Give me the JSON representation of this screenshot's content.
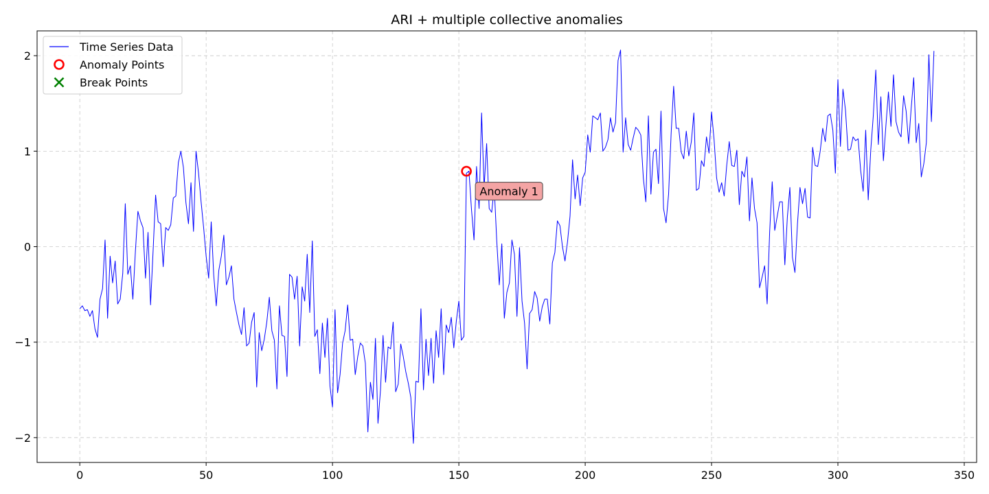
{
  "chart_data": {
    "type": "line",
    "title": "ARI + multiple collective anomalies",
    "xlabel": "",
    "ylabel": "",
    "xlim": [
      -16.9,
      354.9
    ],
    "ylim": [
      -2.26,
      2.26
    ],
    "xticks": [
      0,
      50,
      100,
      150,
      200,
      250,
      300,
      350
    ],
    "yticks": [
      -2,
      -1,
      0,
      1,
      2
    ],
    "ytick_labels": [
      "−2",
      "−1",
      "0",
      "1",
      "2"
    ],
    "grid": true,
    "legend_position": "upper-left",
    "legend": [
      {
        "label": "Time Series Data",
        "marker": "line",
        "color": "#0000ff"
      },
      {
        "label": "Anomaly Points",
        "marker": "circle",
        "color": "#ff0000"
      },
      {
        "label": "Break Points",
        "marker": "x",
        "color": "#008000"
      }
    ],
    "series": [
      {
        "name": "Time Series Data",
        "color": "#0000ff",
        "y": [
          -0.65,
          -0.62,
          -0.67,
          -0.66,
          -0.73,
          -0.67,
          -0.86,
          -0.95,
          -0.55,
          -0.44,
          0.07,
          -0.75,
          -0.1,
          -0.38,
          -0.15,
          -0.6,
          -0.55,
          -0.28,
          0.45,
          -0.29,
          -0.2,
          -0.55,
          -0.05,
          0.37,
          0.27,
          0.2,
          -0.33,
          0.15,
          -0.61,
          -0.05,
          0.54,
          0.26,
          0.24,
          -0.21,
          0.2,
          0.17,
          0.23,
          0.51,
          0.53,
          0.88,
          1.0,
          0.83,
          0.46,
          0.24,
          0.67,
          0.16,
          1.0,
          0.77,
          0.47,
          0.2,
          -0.1,
          -0.33,
          0.26,
          -0.3,
          -0.62,
          -0.25,
          -0.1,
          0.12,
          -0.4,
          -0.32,
          -0.2,
          -0.55,
          -0.69,
          -0.82,
          -0.92,
          -0.64,
          -1.04,
          -1.01,
          -0.79,
          -0.69,
          -1.47,
          -0.9,
          -1.09,
          -0.97,
          -0.79,
          -0.53,
          -0.88,
          -0.98,
          -1.49,
          -0.62,
          -0.93,
          -0.94,
          -1.36,
          -0.29,
          -0.32,
          -0.55,
          -0.31,
          -1.04,
          -0.42,
          -0.57,
          -0.08,
          -0.69,
          0.06,
          -0.94,
          -0.87,
          -1.33,
          -0.8,
          -1.16,
          -0.75,
          -1.46,
          -1.68,
          -0.66,
          -1.53,
          -1.34,
          -1.01,
          -0.88,
          -0.61,
          -0.98,
          -0.97,
          -1.34,
          -1.15,
          -1.01,
          -1.04,
          -1.22,
          -1.94,
          -1.42,
          -1.6,
          -0.96,
          -1.85,
          -1.5,
          -0.93,
          -1.42,
          -1.05,
          -1.07,
          -0.79,
          -1.52,
          -1.44,
          -1.02,
          -1.15,
          -1.31,
          -1.43,
          -1.58,
          -2.06,
          -1.41,
          -1.42,
          -0.65,
          -1.5,
          -0.97,
          -1.35,
          -0.96,
          -1.43,
          -0.88,
          -1.16,
          -0.65,
          -1.34,
          -0.82,
          -0.9,
          -0.74,
          -1.06,
          -0.78,
          -0.57,
          -0.98,
          -0.94,
          0.77,
          0.79,
          0.39,
          0.07,
          0.84,
          0.4,
          1.4,
          0.62,
          1.08,
          0.4,
          0.36,
          0.62,
          0.06,
          -0.4,
          0.03,
          -0.75,
          -0.48,
          -0.38,
          0.07,
          -0.08,
          -0.73,
          -0.01,
          -0.57,
          -0.8,
          -1.28,
          -0.7,
          -0.66,
          -0.47,
          -0.54,
          -0.78,
          -0.63,
          -0.55,
          -0.55,
          -0.81,
          -0.17,
          -0.06,
          0.27,
          0.22,
          0.0,
          -0.15,
          0.05,
          0.32,
          0.91,
          0.5,
          0.75,
          0.43,
          0.72,
          0.78,
          1.17,
          0.99,
          1.37,
          1.35,
          1.33,
          1.4,
          1.0,
          1.04,
          1.12,
          1.35,
          1.2,
          1.3,
          1.95,
          2.06,
          0.99,
          1.35,
          1.07,
          1.01,
          1.14,
          1.25,
          1.22,
          1.17,
          0.72,
          0.47,
          1.37,
          0.55,
          0.99,
          1.02,
          0.66,
          1.42,
          0.4,
          0.25,
          0.55,
          1.18,
          1.68,
          1.24,
          1.24,
          0.99,
          0.92,
          1.21,
          0.95,
          1.1,
          1.4,
          0.59,
          0.61,
          0.9,
          0.84,
          1.15,
          0.98,
          1.41,
          1.12,
          0.72,
          0.57,
          0.67,
          0.53,
          0.85,
          1.1,
          0.85,
          0.84,
          1.01,
          0.44,
          0.79,
          0.73,
          0.94,
          0.27,
          0.72,
          0.4,
          0.25,
          -0.43,
          -0.32,
          -0.2,
          -0.6,
          0.16,
          0.68,
          0.17,
          0.32,
          0.47,
          0.47,
          -0.19,
          0.31,
          0.62,
          -0.11,
          -0.27,
          0.24,
          0.62,
          0.45,
          0.61,
          0.31,
          0.3,
          1.04,
          0.85,
          0.84,
          1.0,
          1.24,
          1.1,
          1.37,
          1.39,
          1.22,
          0.77,
          1.75,
          1.05,
          1.65,
          1.43,
          1.01,
          1.02,
          1.15,
          1.11,
          1.13,
          0.8,
          0.58,
          1.22,
          0.49,
          1.01,
          1.37,
          1.85,
          1.07,
          1.57,
          0.9,
          1.27,
          1.62,
          1.26,
          1.8,
          1.31,
          1.2,
          1.15,
          1.58,
          1.42,
          1.08,
          1.45,
          1.77,
          1.09,
          1.29,
          0.73,
          0.87,
          1.09,
          2.01,
          1.31,
          2.05
        ]
      }
    ],
    "anomaly_points": [
      {
        "x": 153,
        "y": 0.79
      }
    ],
    "break_points": [],
    "annotations": [
      {
        "text": "Anomaly 1",
        "x": 153,
        "y": 0.79
      }
    ]
  }
}
